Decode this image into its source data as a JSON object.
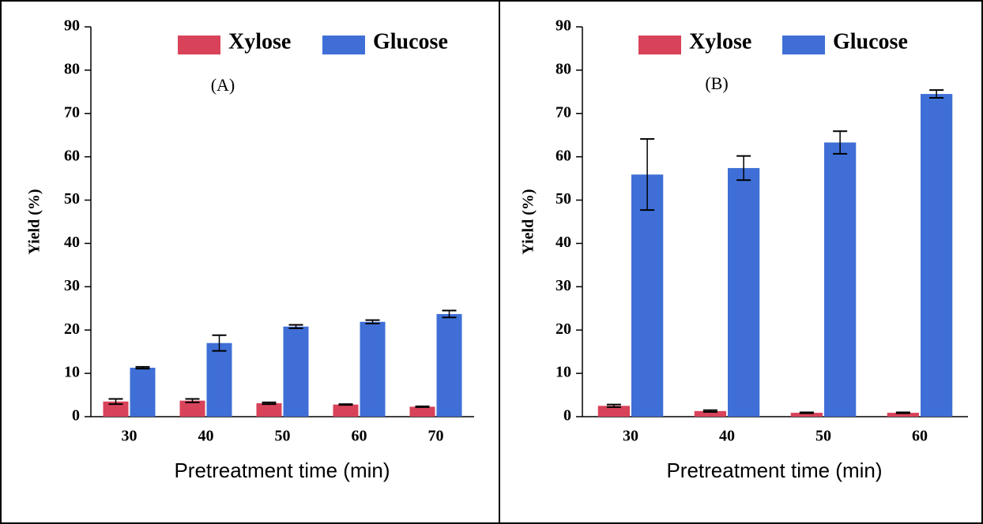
{
  "chart_data": [
    {
      "type": "bar",
      "annotation": "(A)",
      "ylabel": "Yield (%)",
      "xlabel": "Pretreatment time (min)",
      "categories": [
        "30",
        "40",
        "50",
        "60",
        "70"
      ],
      "series": [
        {
          "name": "Xylose",
          "color": "#d8435a",
          "values": [
            3.5,
            3.7,
            3.1,
            2.8,
            2.3
          ],
          "errors": [
            0.6,
            0.4,
            0.2,
            0.1,
            0.1
          ]
        },
        {
          "name": "Glucose",
          "color": "#3f6fd6",
          "values": [
            11.3,
            17,
            20.8,
            21.9,
            23.7
          ],
          "errors": [
            0.2,
            1.8,
            0.4,
            0.4,
            0.8
          ]
        }
      ],
      "ylim": [
        0,
        90
      ],
      "yticks": [
        0,
        10,
        20,
        30,
        40,
        50,
        60,
        70,
        80,
        90
      ]
    },
    {
      "type": "bar",
      "annotation": "(B)",
      "ylabel": "Yield (%)",
      "xlabel": "Pretreatment time (min)",
      "categories": [
        "30",
        "40",
        "50",
        "60"
      ],
      "series": [
        {
          "name": "Xylose",
          "color": "#d8435a",
          "values": [
            2.5,
            1.3,
            0.9,
            0.9
          ],
          "errors": [
            0.3,
            0.2,
            0.1,
            0.1
          ]
        },
        {
          "name": "Glucose",
          "color": "#3f6fd6",
          "values": [
            55.9,
            57.4,
            63.3,
            74.5
          ],
          "errors": [
            8.2,
            2.8,
            2.6,
            0.9
          ]
        }
      ],
      "ylim": [
        0,
        90
      ],
      "yticks": [
        0,
        10,
        20,
        30,
        40,
        50,
        60,
        70,
        80,
        90
      ]
    }
  ]
}
